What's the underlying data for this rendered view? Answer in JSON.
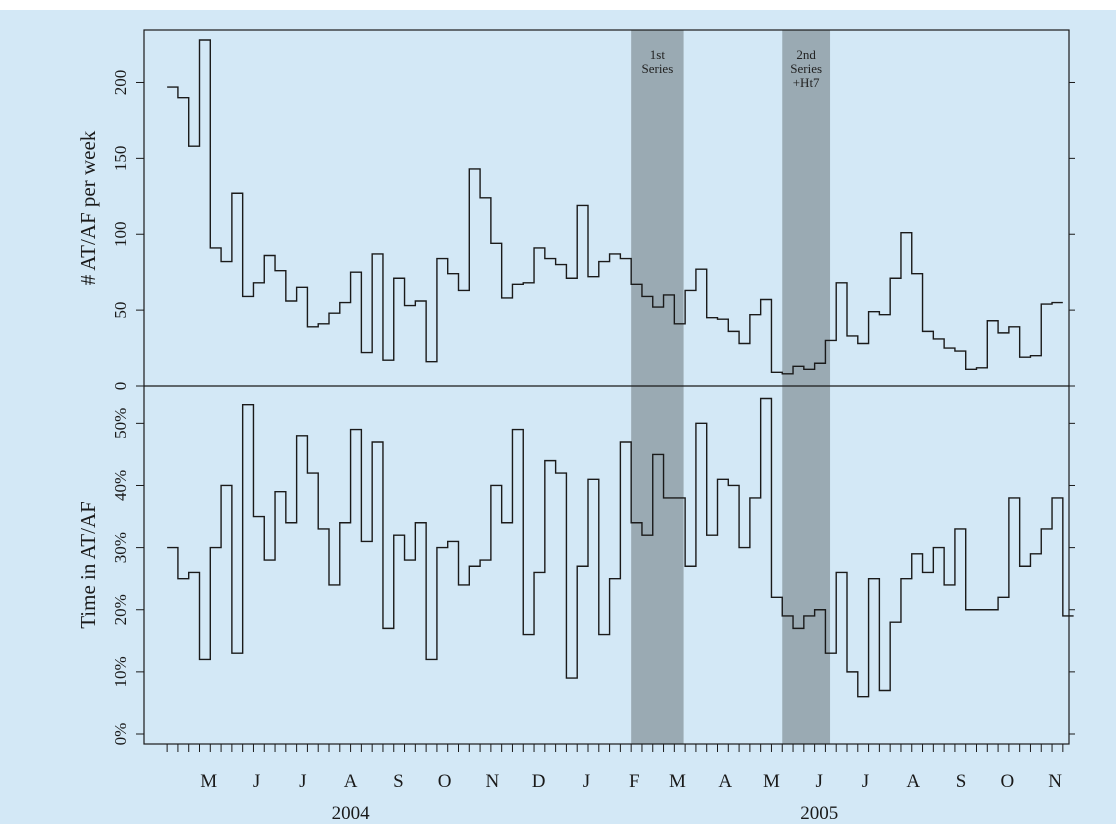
{
  "chart_data": [
    {
      "type": "line",
      "step": true,
      "ylabel": "# AT/AF per week",
      "ylim": [
        0,
        230
      ],
      "yticks": [
        "0",
        "50",
        "100",
        "150",
        "200"
      ],
      "x_start": "2004-04-04",
      "x_step_days": 7,
      "values": [
        197,
        190,
        158,
        228,
        91,
        82,
        127,
        59,
        68,
        86,
        76,
        56,
        65,
        39,
        41,
        48,
        55,
        75,
        22,
        87,
        17,
        71,
        53,
        56,
        16,
        84,
        74,
        63,
        143,
        124,
        94,
        58,
        67,
        68,
        91,
        84,
        80,
        71,
        119,
        72,
        82,
        87,
        84,
        67,
        59,
        52,
        60,
        41,
        63,
        77,
        45,
        44,
        36,
        28,
        47,
        57,
        9,
        8,
        13,
        11,
        15,
        30,
        68,
        33,
        28,
        49,
        47,
        71,
        101,
        74,
        36,
        31,
        25,
        23,
        11,
        12,
        43,
        35,
        39,
        19,
        20,
        54,
        55
      ]
    },
    {
      "type": "line",
      "step": true,
      "ylabel": "Time in AT/AF",
      "ylim": [
        0,
        54
      ],
      "yticks": [
        "0%",
        "10%",
        "20%",
        "30%",
        "40%",
        "50%"
      ],
      "x_start": "2004-04-04",
      "x_step_days": 7,
      "values": [
        30,
        25,
        26,
        12,
        30,
        40,
        13,
        53,
        35,
        28,
        39,
        34,
        48,
        42,
        33,
        24,
        34,
        49,
        31,
        47,
        17,
        32,
        28,
        34,
        12,
        30,
        31,
        24,
        27,
        28,
        40,
        34,
        49,
        16,
        26,
        44,
        42,
        9,
        27,
        41,
        16,
        25,
        47,
        34,
        32,
        45,
        38,
        38,
        27,
        50,
        32,
        41,
        40,
        30,
        38,
        54,
        22,
        19,
        17,
        19,
        20,
        13,
        26,
        10,
        6,
        25,
        7,
        18,
        25,
        29,
        26,
        30,
        24,
        33,
        20,
        20,
        20,
        22,
        38,
        27,
        29,
        33,
        38,
        19
      ]
    }
  ],
  "x_axis": {
    "range": [
      "2004-03-20",
      "2005-11-10"
    ],
    "months": [
      {
        "label": "M",
        "date": "2004-05-01"
      },
      {
        "label": "J",
        "date": "2004-06-01"
      },
      {
        "label": "J",
        "date": "2004-07-01"
      },
      {
        "label": "A",
        "date": "2004-08-01"
      },
      {
        "label": "S",
        "date": "2004-09-01"
      },
      {
        "label": "O",
        "date": "2004-10-01"
      },
      {
        "label": "N",
        "date": "2004-11-01"
      },
      {
        "label": "D",
        "date": "2004-12-01"
      },
      {
        "label": "J",
        "date": "2005-01-01"
      },
      {
        "label": "F",
        "date": "2005-02-01"
      },
      {
        "label": "M",
        "date": "2005-03-01"
      },
      {
        "label": "A",
        "date": "2005-04-01"
      },
      {
        "label": "M",
        "date": "2005-05-01"
      },
      {
        "label": "J",
        "date": "2005-06-01"
      },
      {
        "label": "J",
        "date": "2005-07-01"
      },
      {
        "label": "A",
        "date": "2005-08-01"
      },
      {
        "label": "S",
        "date": "2005-09-01"
      },
      {
        "label": "O",
        "date": "2005-10-01"
      },
      {
        "label": "N",
        "date": "2005-11-01"
      }
    ],
    "years": [
      {
        "label": "2004",
        "date": "2004-08-01"
      },
      {
        "label": "2005",
        "date": "2005-06-01"
      }
    ]
  },
  "bands": [
    {
      "lines": [
        "1st",
        "Series"
      ],
      "start": "2005-01-30",
      "end": "2005-03-05"
    },
    {
      "lines": [
        "2nd",
        "Series",
        "+Ht7"
      ],
      "start": "2005-05-08",
      "end": "2005-06-08"
    }
  ],
  "colors": {
    "background": "#d3e8f6",
    "band": "#9aaab3",
    "line": "#1a1a1a"
  }
}
